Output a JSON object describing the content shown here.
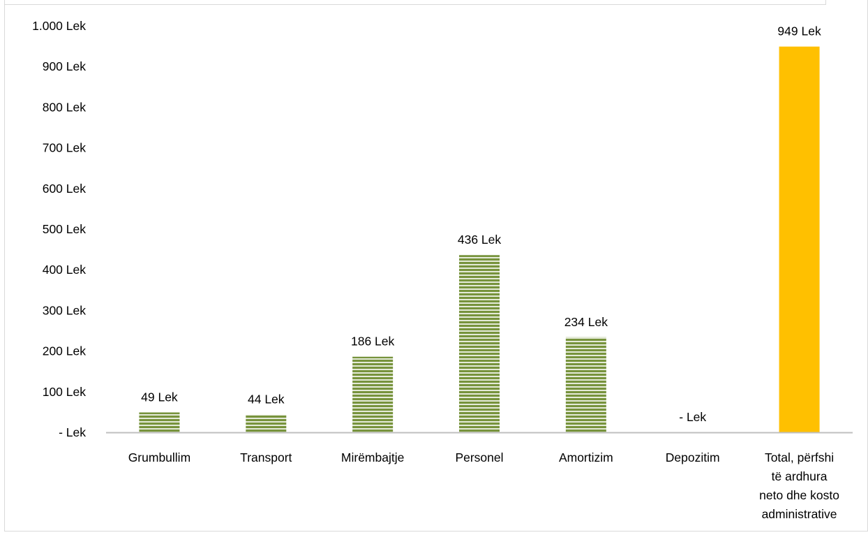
{
  "chart_data": {
    "type": "bar",
    "title": "",
    "xlabel": "",
    "ylabel": "",
    "unit": "Lek",
    "ylim": [
      0,
      1000
    ],
    "yticks": [
      0,
      100,
      200,
      300,
      400,
      500,
      600,
      700,
      800,
      900,
      1000
    ],
    "ytick_labels": [
      "- Lek",
      "100 Lek",
      "200 Lek",
      "300 Lek",
      "400 Lek",
      "500 Lek",
      "600 Lek",
      "700 Lek",
      "800 Lek",
      "900 Lek",
      "1.000 Lek"
    ],
    "grid": false,
    "legend": "none",
    "categories": [
      "Grumbullim",
      "Transport",
      "Mirëmbajtje",
      "Personel",
      "Amortizim",
      "Depozitim",
      "Total, përfshi të ardhura neto dhe kosto administrative"
    ],
    "category_lines": [
      [
        "Grumbullim"
      ],
      [
        "Transport"
      ],
      [
        "Mirëmbajtje"
      ],
      [
        "Personel"
      ],
      [
        "Amortizim"
      ],
      [
        "Depozitim"
      ],
      [
        "Total, përfshi",
        "të ardhura",
        "neto dhe kosto",
        "administrative"
      ]
    ],
    "values": [
      49,
      44,
      186,
      436,
      234,
      0,
      949
    ],
    "data_labels": [
      "49 Lek",
      "44 Lek",
      "186 Lek",
      "436 Lek",
      "234 Lek",
      "- Lek",
      "949 Lek"
    ],
    "colors": {
      "component_bar": "#77933c",
      "component_stripe": "#ffffff",
      "total_bar": "#ffc000",
      "axis_line": "#bfbfbf"
    }
  }
}
